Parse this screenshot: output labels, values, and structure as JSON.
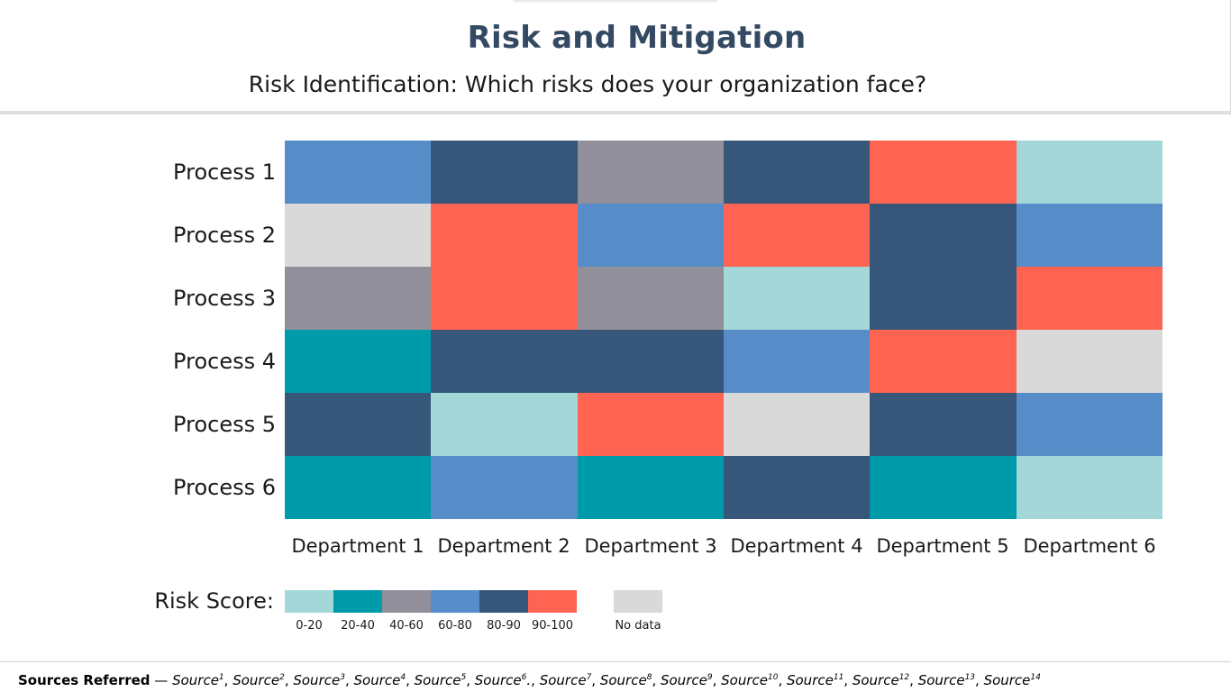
{
  "title": "Risk and Mitigation",
  "subtitle": "Risk Identification: Which risks does your organization face?",
  "chart_data": {
    "type": "heatmap",
    "rows": [
      "Process 1",
      "Process 2",
      "Process 3",
      "Process 4",
      "Process 5",
      "Process 6"
    ],
    "columns": [
      "Department 1",
      "Department 2",
      "Department 3",
      "Department 4",
      "Department 5",
      "Department 6"
    ],
    "values": [
      [
        "60-80",
        "80-90",
        "40-60",
        "80-90",
        "90-100",
        "0-20"
      ],
      [
        "No data",
        "90-100",
        "60-80",
        "90-100",
        "80-90",
        "60-80"
      ],
      [
        "40-60",
        "90-100",
        "40-60",
        "0-20",
        "80-90",
        "90-100"
      ],
      [
        "20-40",
        "80-90",
        "80-90",
        "60-80",
        "90-100",
        "No data"
      ],
      [
        "80-90",
        "0-20",
        "90-100",
        "No data",
        "80-90",
        "60-80"
      ],
      [
        "20-40",
        "60-80",
        "20-40",
        "80-90",
        "20-40",
        "0-20"
      ]
    ],
    "legend": {
      "title": "Risk Score:",
      "bins": [
        {
          "label": "0-20",
          "color": "#a4d7d7"
        },
        {
          "label": "20-40",
          "color": "#009baa"
        },
        {
          "label": "40-60",
          "color": "#918f99"
        },
        {
          "label": "60-80",
          "color": "#568dc9"
        },
        {
          "label": "80-90",
          "color": "#36577a"
        },
        {
          "label": "90-100",
          "color": "#ff6352"
        }
      ],
      "no_data": {
        "label": "No data",
        "color": "#d9d9d9"
      }
    }
  },
  "footer": {
    "heading": "Sources Referred",
    "dash": " — ",
    "sources": [
      {
        "name": "Source",
        "sup": "1"
      },
      {
        "name": "Source",
        "sup": "2"
      },
      {
        "name": "Source",
        "sup": "3"
      },
      {
        "name": "Source",
        "sup": "4"
      },
      {
        "name": "Source",
        "sup": "5"
      },
      {
        "name": "Source",
        "sup": "6",
        "trail": "."
      },
      {
        "name": "Source",
        "sup": "7"
      },
      {
        "name": "Source",
        "sup": "8"
      },
      {
        "name": "Source",
        "sup": "9"
      },
      {
        "name": "Source",
        "sup": "10"
      },
      {
        "name": "Source",
        "sup": "11"
      },
      {
        "name": "Source",
        "sup": "12"
      },
      {
        "name": "Source",
        "sup": "13"
      },
      {
        "name": "Source",
        "sup": "14"
      }
    ]
  }
}
